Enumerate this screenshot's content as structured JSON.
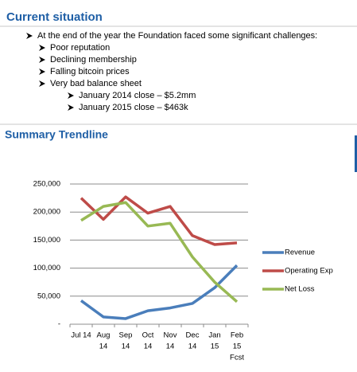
{
  "header": {
    "title": "Current situation"
  },
  "bullets": [
    {
      "text": "At the end of the year the Foundation faced some significant challenges:",
      "children": [
        {
          "text": "Poor reputation"
        },
        {
          "text": "Declining membership"
        },
        {
          "text": "Falling bitcoin prices"
        },
        {
          "text": "Very bad balance sheet",
          "children": [
            {
              "text": "January 2014 close – $5.2mm"
            },
            {
              "text": "January 2015 close – $463k"
            }
          ]
        }
      ]
    }
  ],
  "section": {
    "title": "Summary Trendline"
  },
  "chart_data": {
    "type": "line",
    "categories": [
      [
        "Jul 14"
      ],
      [
        "Aug",
        "14"
      ],
      [
        "Sep",
        "14"
      ],
      [
        "Oct",
        "14"
      ],
      [
        "Nov",
        "14"
      ],
      [
        "Dec",
        "14"
      ],
      [
        "Jan",
        "15"
      ],
      [
        "Feb",
        "15",
        "Fcst"
      ]
    ],
    "series": [
      {
        "name": "Revenue",
        "color": "#4a7ebb",
        "values": [
          42000,
          13000,
          10000,
          24000,
          29000,
          37000,
          65000,
          105000
        ]
      },
      {
        "name": "Operating Exp",
        "color": "#be4b48",
        "values": [
          225000,
          187000,
          227000,
          198000,
          210000,
          158000,
          142000,
          145000
        ]
      },
      {
        "name": "Net Loss",
        "color": "#98b954",
        "values": [
          185000,
          210000,
          217000,
          175000,
          180000,
          120000,
          75000,
          40000
        ]
      }
    ],
    "ylim": [
      0,
      250000
    ],
    "yticks": [
      {
        "value": 0,
        "label": "-"
      },
      {
        "value": 50000,
        "label": "50,000"
      },
      {
        "value": 100000,
        "label": "100,000"
      },
      {
        "value": 150000,
        "label": "150,000"
      },
      {
        "value": 200000,
        "label": "200,000"
      },
      {
        "value": 250000,
        "label": "250,000"
      }
    ],
    "grid": true,
    "legend": "right"
  }
}
